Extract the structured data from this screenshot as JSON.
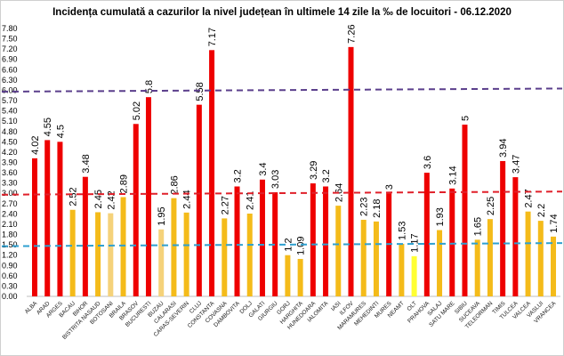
{
  "chart_data": {
    "type": "bar",
    "title": "Incidența cumulată a cazurilor la nivel județean în ultimele 14 zile la ‰ de locuitori - 06.12.2020",
    "xlabel": "",
    "ylabel": "",
    "ylim": [
      0,
      7.8
    ],
    "ytick_step": 0.3,
    "grid": false,
    "legend": "none",
    "categories": [
      "ALBA",
      "ARAD",
      "ARGES",
      "BACAU",
      "BIHOR",
      "BISTRITA NASAUD",
      "BOTOSANI",
      "BRAILA",
      "BRASOV",
      "BUCURESTI",
      "BUZAU",
      "CALARASI",
      "CARAS-SEVERIN",
      "CLUJ",
      "CONSTANTA",
      "COVASNA",
      "DAMBOVITA",
      "DOLJ",
      "GALATI",
      "GIURGIU",
      "GORJ",
      "HARGHITA",
      "HUNEDOARA",
      "IALOMITA",
      "IASI",
      "ILFOV",
      "MARAMURES",
      "MEHEDINTI",
      "MURES",
      "NEAMT",
      "OLT",
      "PRAHOVA",
      "SALAJ",
      "SATU MARE",
      "SIBIU",
      "SUCEAVA",
      "TELEORMAN",
      "TIMIS",
      "TULCEA",
      "VALCEA",
      "VASLUI",
      "VRANCEA"
    ],
    "values": [
      4.02,
      4.55,
      4.5,
      2.52,
      3.48,
      2.45,
      2.42,
      2.89,
      5.02,
      5.8,
      1.95,
      2.86,
      2.44,
      5.58,
      7.17,
      2.27,
      3.2,
      2.41,
      3.4,
      3.03,
      1.2,
      1.09,
      3.29,
      3.2,
      2.64,
      7.26,
      2.23,
      2.18,
      3,
      1.53,
      1.17,
      3.6,
      1.93,
      3.14,
      5,
      1.65,
      2.25,
      3.94,
      3.47,
      2.47,
      2.2,
      1.74
    ],
    "bar_colors": [
      "#ee0000",
      "#ee0000",
      "#ee0000",
      "#f4bb1a",
      "#ee0000",
      "#f4bb1a",
      "#f5d27a",
      "#f4bb1a",
      "#ee0000",
      "#ee0000",
      "#f5d27a",
      "#f4bb1a",
      "#f4bb1a",
      "#ee0000",
      "#ee0000",
      "#f4bb1a",
      "#ee0000",
      "#f4bb1a",
      "#ee0000",
      "#ee0000",
      "#f4bb1a",
      "#f4bb1a",
      "#ee0000",
      "#ee0000",
      "#f4bb1a",
      "#ee0000",
      "#f4bb1a",
      "#f4bb1a",
      "#ee0000",
      "#f4bb1a",
      "#ffff33",
      "#ee0000",
      "#f4bb1a",
      "#ee0000",
      "#ee0000",
      "#f4bb1a",
      "#f4bb1a",
      "#ee0000",
      "#ee0000",
      "#f4bb1a",
      "#f4bb1a",
      "#f4bb1a"
    ],
    "reference_lines": [
      {
        "value": 6.0,
        "color": "#5b3f8c"
      },
      {
        "value": 3.0,
        "color": "#e0202a"
      },
      {
        "value": 1.5,
        "color": "#2fa0d0"
      }
    ]
  }
}
